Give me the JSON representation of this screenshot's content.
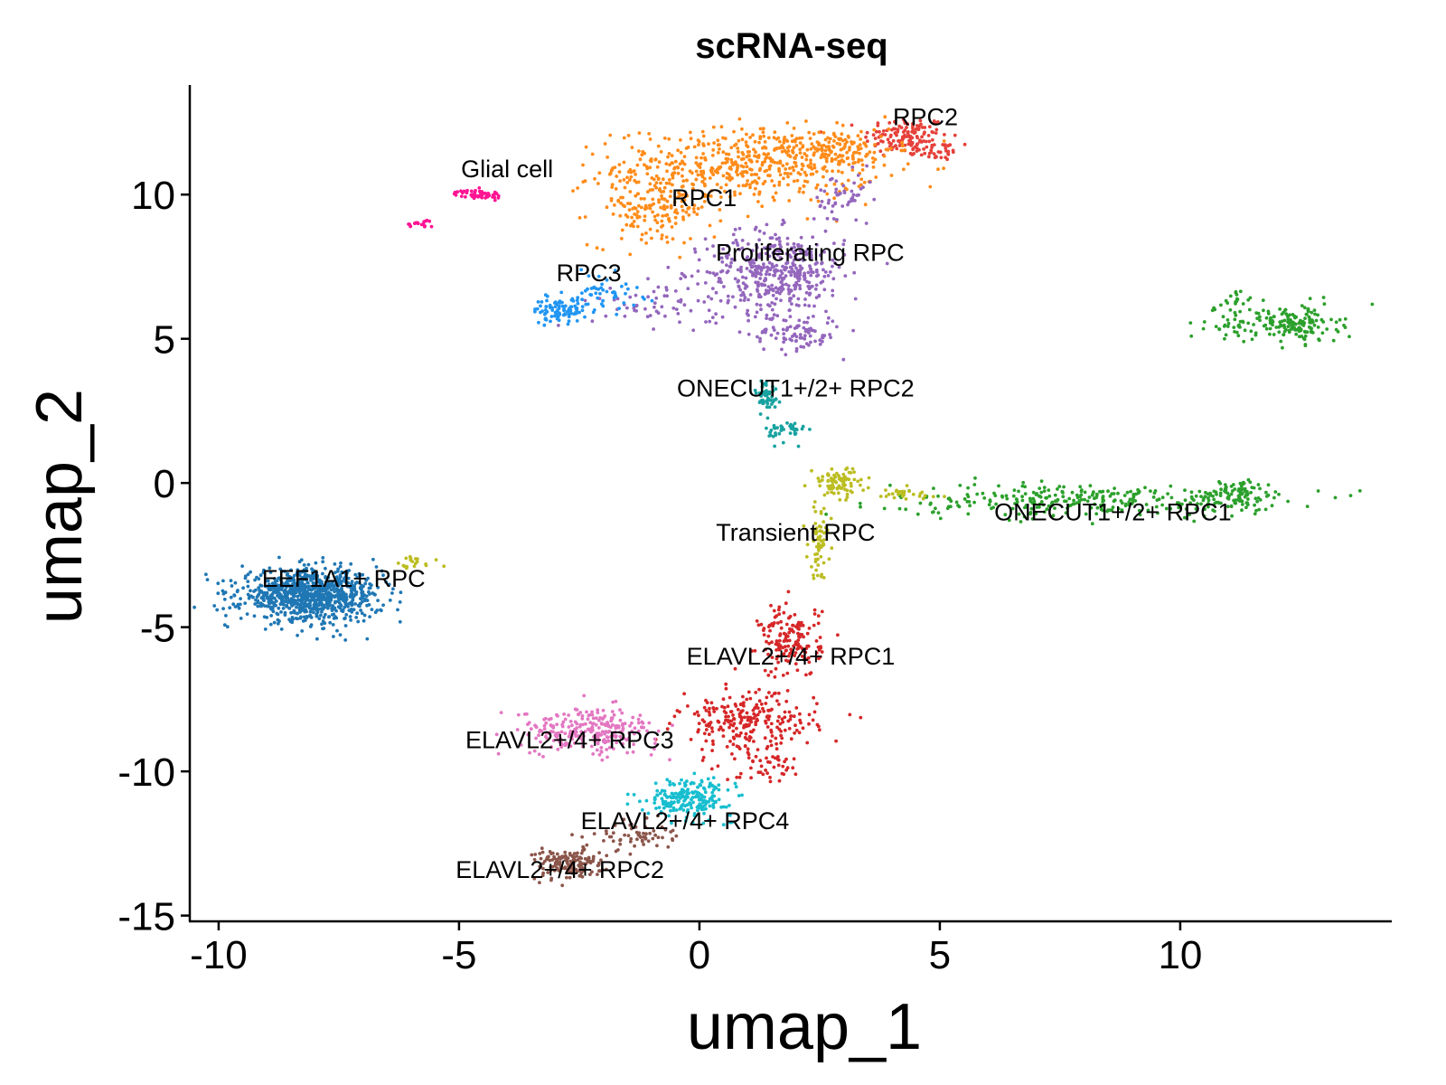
{
  "chart_data": {
    "type": "scatter",
    "title": "scRNA-seq",
    "xlabel": "umap_1",
    "ylabel": "umap_2",
    "xlim": [
      -10.6,
      14.4
    ],
    "ylim": [
      -15.2,
      13.8
    ],
    "xticks": [
      -10,
      -5,
      0,
      5,
      10
    ],
    "xtick_labels": [
      "-10",
      "-5",
      "0",
      "5",
      "10"
    ],
    "yticks": [
      -15,
      -10,
      -5,
      0,
      5,
      10
    ],
    "ytick_labels": [
      "-15",
      "-10",
      "-5",
      "0",
      "5",
      "10"
    ],
    "grid": false,
    "legend": "none",
    "clusters": [
      {
        "label": "RPC2",
        "color": "#e6403a",
        "label_pos": [
          4.7,
          12.4
        ],
        "blobs": [
          {
            "c": [
              4.3,
              12.0
            ],
            "s": [
              0.55,
              0.45
            ],
            "n": 140
          },
          {
            "c": [
              5.0,
              11.5
            ],
            "s": [
              0.25,
              0.2
            ],
            "n": 30
          }
        ]
      },
      {
        "label": "RPC1",
        "color": "#ff8c1a",
        "label_pos": [
          0.1,
          9.6
        ],
        "blobs": [
          {
            "c": [
              1.0,
              11.0
            ],
            "s": [
              1.7,
              0.8
            ],
            "n": 520
          },
          {
            "c": [
              -1.0,
              9.5
            ],
            "s": [
              0.8,
              0.8
            ],
            "n": 160
          },
          {
            "c": [
              2.8,
              11.6
            ],
            "s": [
              0.8,
              0.4
            ],
            "n": 120
          }
        ]
      },
      {
        "label": "Proliferating RPC",
        "color": "#9467bd",
        "label_pos": [
          2.3,
          7.7
        ],
        "blobs": [
          {
            "c": [
              1.6,
              7.3
            ],
            "s": [
              0.9,
              0.9
            ],
            "n": 420
          },
          {
            "c": [
              2.0,
              5.2
            ],
            "s": [
              0.6,
              0.4
            ],
            "n": 90
          },
          {
            "c": [
              -0.8,
              6.2
            ],
            "s": [
              0.9,
              0.5
            ],
            "n": 60
          },
          {
            "c": [
              3.0,
              9.8
            ],
            "s": [
              0.4,
              0.6
            ],
            "n": 50
          }
        ]
      },
      {
        "label": "RPC3",
        "color": "#2196f3",
        "label_pos": [
          -2.3,
          7.0
        ],
        "blobs": [
          {
            "c": [
              -2.9,
              6.0
            ],
            "s": [
              0.35,
              0.25
            ],
            "n": 90
          },
          {
            "c": [
              -2.0,
              6.6
            ],
            "s": [
              0.5,
              0.4
            ],
            "n": 50
          }
        ]
      },
      {
        "label": "Glial cell",
        "color": "#ff1493",
        "label_pos": [
          -4.0,
          10.6
        ],
        "blobs": [
          {
            "c": [
              -4.6,
              10.0
            ],
            "s": [
              0.3,
              0.1
            ],
            "n": 60
          },
          {
            "c": [
              -5.8,
              9.0
            ],
            "s": [
              0.2,
              0.08
            ],
            "n": 18
          }
        ]
      },
      {
        "label": "ONECUT1+/2+ RPC2",
        "color": "#17a2a0",
        "label_pos": [
          2.0,
          3.0
        ],
        "blobs": [
          {
            "c": [
              1.4,
              3.0
            ],
            "s": [
              0.15,
              0.4
            ],
            "n": 50
          },
          {
            "c": [
              1.8,
              1.8
            ],
            "s": [
              0.25,
              0.25
            ],
            "n": 40
          }
        ]
      },
      {
        "label": "ONECUT1+/2+ RPC1",
        "color": "#2ca02c",
        "label_pos": [
          8.6,
          -1.3
        ],
        "blobs": [
          {
            "c": [
              8.0,
              -0.6
            ],
            "s": [
              2.5,
              0.35
            ],
            "n": 300
          },
          {
            "c": [
              11.2,
              -0.4
            ],
            "s": [
              0.5,
              0.35
            ],
            "n": 90
          }
        ]
      },
      {
        "label": "",
        "color": "#2ca02c",
        "label_pos": null,
        "blobs": [
          {
            "c": [
              12.4,
              5.5
            ],
            "s": [
              0.55,
              0.4
            ],
            "n": 150
          },
          {
            "c": [
              11.2,
              5.5
            ],
            "s": [
              0.4,
              0.3
            ],
            "n": 40
          },
          {
            "c": [
              11.0,
              6.3
            ],
            "s": [
              0.3,
              0.25
            ],
            "n": 20
          }
        ]
      },
      {
        "label": "Transient RPC",
        "color": "#bcbd22",
        "label_pos": [
          2.0,
          -2.0
        ],
        "blobs": [
          {
            "c": [
              2.9,
              0.0
            ],
            "s": [
              0.35,
              0.3
            ],
            "n": 90
          },
          {
            "c": [
              2.5,
              -2.0
            ],
            "s": [
              0.15,
              0.8
            ],
            "n": 60
          },
          {
            "c": [
              4.2,
              -0.4
            ],
            "s": [
              0.5,
              0.15
            ],
            "n": 30
          },
          {
            "c": [
              -6.0,
              -2.8
            ],
            "s": [
              0.35,
              0.15
            ],
            "n": 20
          }
        ]
      },
      {
        "label": "EEF1A1+ RPC",
        "color": "#1f77b4",
        "label_pos": [
          -7.4,
          -3.6
        ],
        "blobs": [
          {
            "c": [
              -8.1,
              -3.9
            ],
            "s": [
              0.9,
              0.55
            ],
            "n": 900
          }
        ]
      },
      {
        "label": "ELAVL2+/4+ RPC1",
        "color": "#d62728",
        "label_pos": [
          1.9,
          -6.3
        ],
        "blobs": [
          {
            "c": [
              1.9,
              -5.5
            ],
            "s": [
              0.4,
              0.8
            ],
            "n": 160
          },
          {
            "c": [
              1.0,
              -8.3
            ],
            "s": [
              0.9,
              0.6
            ],
            "n": 240
          },
          {
            "c": [
              1.3,
              -9.7
            ],
            "s": [
              0.5,
              0.4
            ],
            "n": 50
          }
        ]
      },
      {
        "label": "ELAVL2+/4+ RPC3",
        "color": "#e377c2",
        "label_pos": [
          -2.7,
          -9.2
        ],
        "blobs": [
          {
            "c": [
              -2.3,
              -8.6
            ],
            "s": [
              0.9,
              0.5
            ],
            "n": 260
          }
        ]
      },
      {
        "label": "ELAVL2+/4+ RPC4",
        "color": "#17becf",
        "label_pos": [
          -0.3,
          -12.0
        ],
        "blobs": [
          {
            "c": [
              -0.2,
              -10.9
            ],
            "s": [
              0.55,
              0.4
            ],
            "n": 210
          }
        ]
      },
      {
        "label": "ELAVL2+/4+ RPC2",
        "color": "#8c564b",
        "label_pos": [
          -2.9,
          -13.7
        ],
        "blobs": [
          {
            "c": [
              -2.7,
              -13.2
            ],
            "s": [
              0.45,
              0.35
            ],
            "n": 160
          },
          {
            "c": [
              -1.4,
              -12.2
            ],
            "s": [
              0.5,
              0.3
            ],
            "n": 60
          }
        ]
      }
    ]
  }
}
